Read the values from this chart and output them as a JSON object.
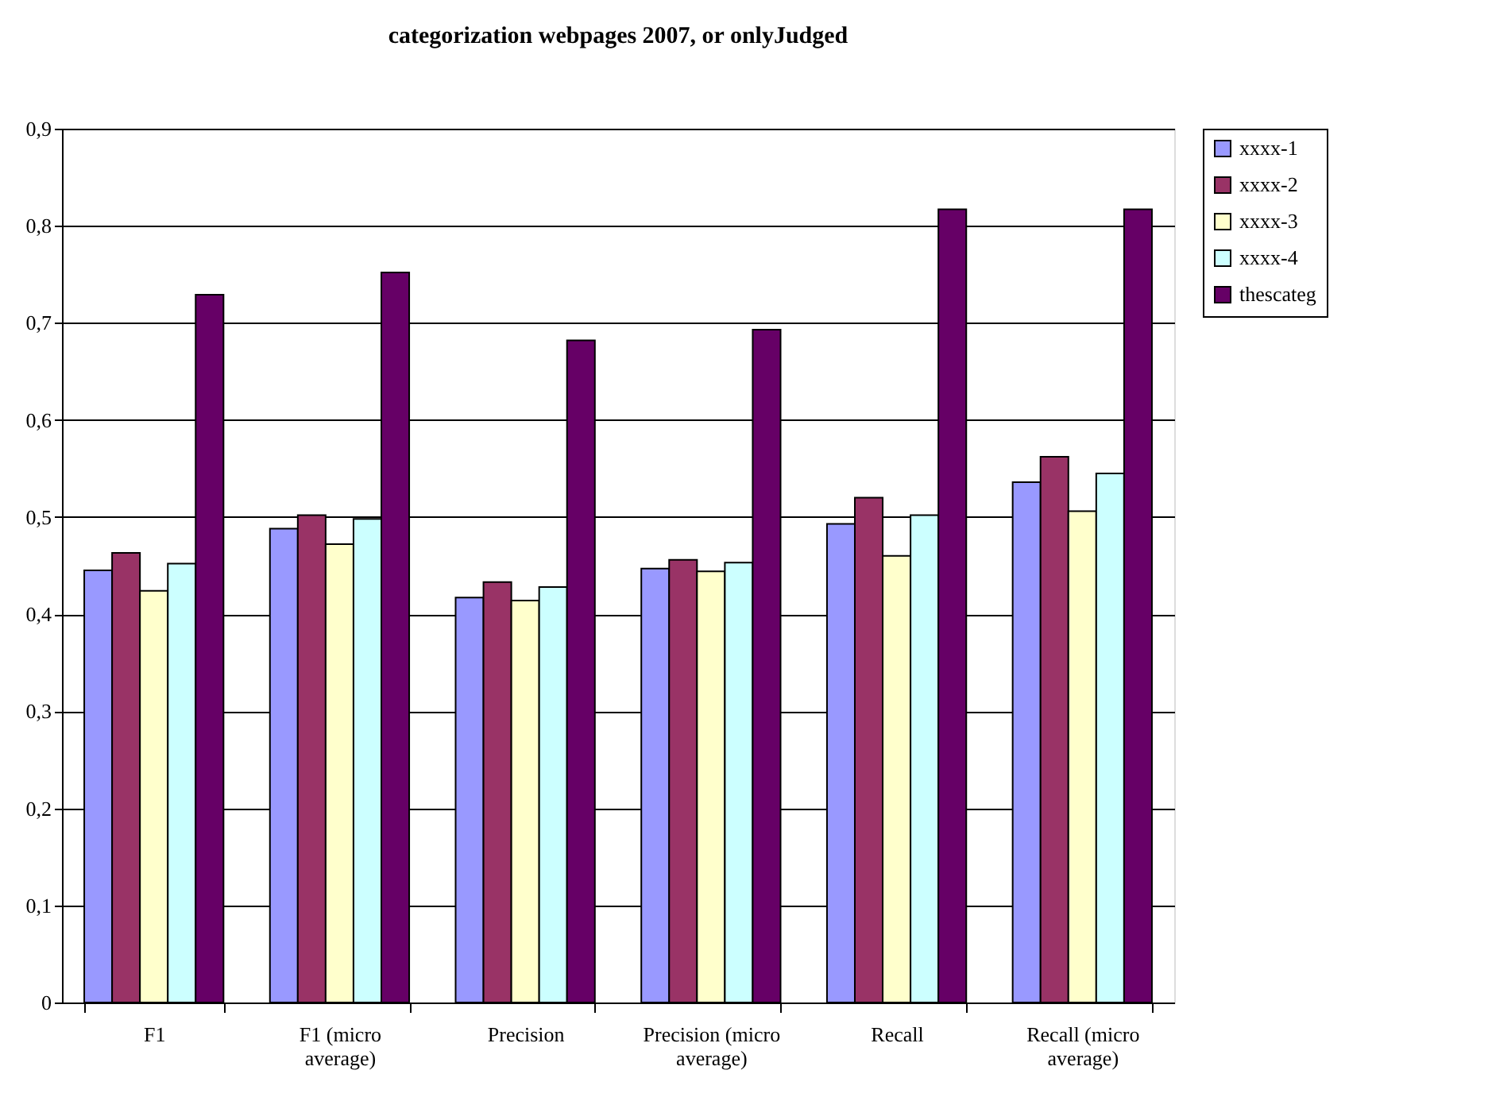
{
  "chart_data": {
    "type": "bar",
    "title": "categorization webpages 2007, or onlyJudged",
    "categories": [
      "F1",
      "F1 (micro\naverage)",
      "Precision",
      "Precision (micro\naverage)",
      "Recall",
      "Recall (micro\naverage)"
    ],
    "series": [
      {
        "name": "xxxx-1",
        "color": "#9999ff",
        "values": [
          0.445,
          0.488,
          0.417,
          0.447,
          0.493,
          0.536
        ]
      },
      {
        "name": "xxxx-2",
        "color": "#993366",
        "values": [
          0.463,
          0.502,
          0.433,
          0.456,
          0.52,
          0.562
        ]
      },
      {
        "name": "xxxx-3",
        "color": "#ffffcc",
        "values": [
          0.424,
          0.472,
          0.414,
          0.444,
          0.46,
          0.506
        ]
      },
      {
        "name": "xxxx-4",
        "color": "#ccffff",
        "values": [
          0.452,
          0.498,
          0.428,
          0.453,
          0.502,
          0.545
        ]
      },
      {
        "name": "thescateg",
        "color": "#660066",
        "values": [
          0.729,
          0.752,
          0.682,
          0.693,
          0.817,
          0.817
        ]
      }
    ],
    "ylim": [
      0,
      0.9
    ],
    "yticks": [
      {
        "value": 0,
        "label": "0"
      },
      {
        "value": 0.1,
        "label": "0,1"
      },
      {
        "value": 0.2,
        "label": "0,2"
      },
      {
        "value": 0.3,
        "label": "0,3"
      },
      {
        "value": 0.4,
        "label": "0,4"
      },
      {
        "value": 0.5,
        "label": "0,5"
      },
      {
        "value": 0.6,
        "label": "0,6"
      },
      {
        "value": 0.7,
        "label": "0,7"
      },
      {
        "value": 0.8,
        "label": "0,8"
      },
      {
        "value": 0.9,
        "label": "0,9"
      }
    ],
    "grid": "y",
    "legend": "right"
  }
}
